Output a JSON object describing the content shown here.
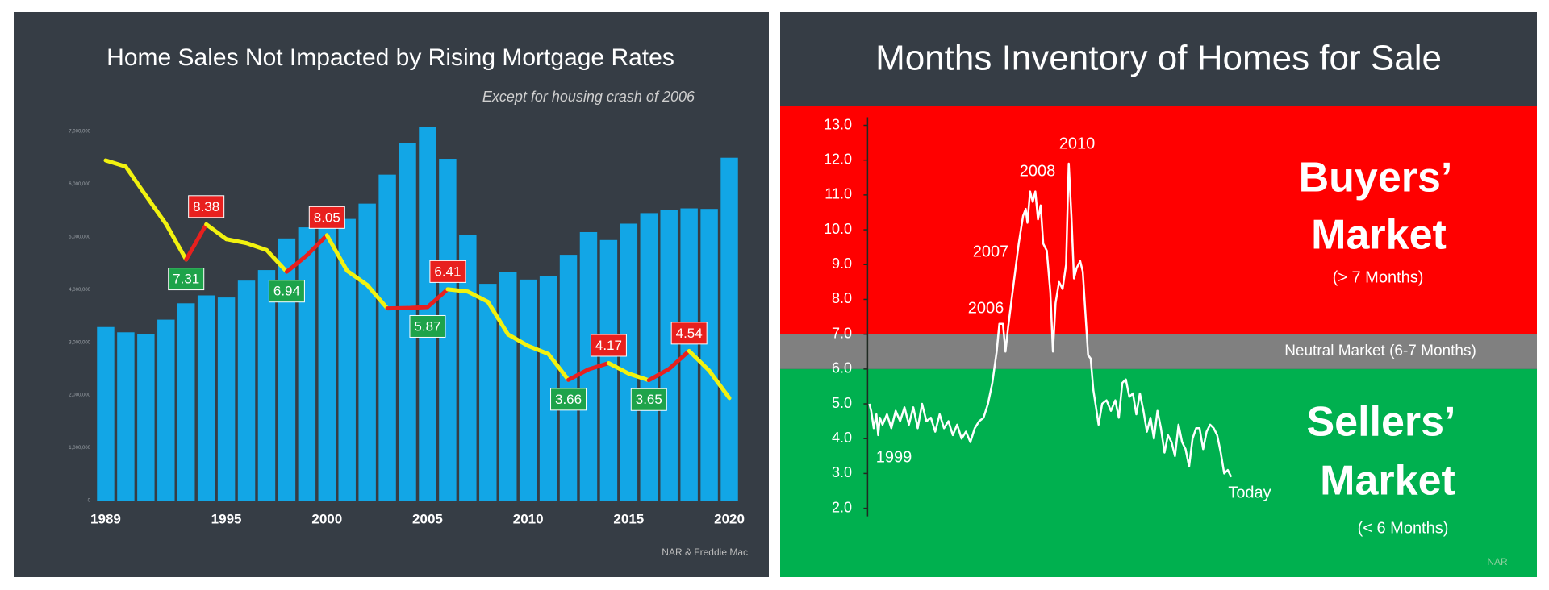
{
  "chart_data": [
    {
      "type": "combo",
      "title": "Home Sales Not Impacted by Rising Mortgage Rates",
      "subtitle": "Except for housing crash of 2006",
      "source": "NAR & Freddie Mac",
      "x": [
        1989,
        1990,
        1991,
        1992,
        1993,
        1994,
        1995,
        1996,
        1997,
        1998,
        1999,
        2000,
        2001,
        2002,
        2003,
        2004,
        2005,
        2006,
        2007,
        2008,
        2009,
        2010,
        2011,
        2012,
        2013,
        2014,
        2015,
        2016,
        2017,
        2018,
        2019,
        2020
      ],
      "xlim": [
        1988.5,
        2020.5
      ],
      "xticks": [
        1989,
        1995,
        2000,
        2005,
        2010,
        2015,
        2020
      ],
      "ylim": [
        0,
        7000000
      ],
      "yticks": [
        0,
        {
          "value": 1000000,
          "label": "1,000,000"
        },
        {
          "value": 2000000,
          "label": "2,000,000"
        },
        {
          "value": 3000000,
          "label": "3,000,000"
        },
        {
          "value": 4000000,
          "label": "4,000,000"
        },
        {
          "value": 5000000,
          "label": "5,000,000"
        },
        {
          "value": 6000000,
          "label": "6,000,000"
        },
        {
          "value": 7000000,
          "label": "7,000,000"
        }
      ],
      "y2lim": [
        0,
        11.2
      ],
      "grid": false,
      "series": [
        {
          "type": "bar",
          "color": "#12a6e6",
          "values": [
            3290000,
            3190000,
            3150000,
            3430000,
            3740000,
            3890000,
            3850000,
            4170000,
            4370000,
            4970000,
            5180000,
            5170000,
            5340000,
            5630000,
            6180000,
            6780000,
            7080000,
            6480000,
            5030000,
            4110000,
            4340000,
            4190000,
            4260000,
            4660000,
            5090000,
            4940000,
            5250000,
            5450000,
            5510000,
            5540000,
            5530000,
            6500000
          ]
        },
        {
          "type": "line",
          "axis": "y2",
          "color": "#f2f20f",
          "rise_color": "#e8201e",
          "trough_color": "#1ea34a",
          "values": [
            10.32,
            10.13,
            9.25,
            8.39,
            7.31,
            8.38,
            7.93,
            7.81,
            7.6,
            6.94,
            7.44,
            8.05,
            6.97,
            6.54,
            5.83,
            5.84,
            5.87,
            6.41,
            6.34,
            6.03,
            5.04,
            4.69,
            4.45,
            3.66,
            3.98,
            4.17,
            3.85,
            3.65,
            3.99,
            4.54,
            3.94,
            3.11
          ],
          "value_labels": [
            null,
            null,
            null,
            null,
            "7.31",
            "8.38",
            null,
            null,
            null,
            "6.94",
            null,
            "8.05",
            null,
            null,
            null,
            null,
            "5.87",
            "6.41",
            null,
            null,
            null,
            null,
            null,
            "3.66",
            null,
            "4.17",
            null,
            "3.65",
            null,
            "4.54",
            null,
            null
          ]
        }
      ]
    },
    {
      "type": "line",
      "title": "Months Inventory of Homes for Sale",
      "source": "NAR",
      "color": "#ffffff",
      "xlim": [
        1998.9,
        2037
      ],
      "ylim": [
        2,
        13
      ],
      "yticks": [
        {
          "value": 2,
          "label": "2.0"
        },
        {
          "value": 3,
          "label": "3.0"
        },
        {
          "value": 4,
          "label": "4.0"
        },
        {
          "value": 5,
          "label": "5.0"
        },
        {
          "value": 6,
          "label": "6.0"
        },
        {
          "value": 7,
          "label": "7.0"
        },
        {
          "value": 8,
          "label": "8.0"
        },
        {
          "value": 9,
          "label": "9.0"
        },
        {
          "value": 10,
          "label": "10.0"
        },
        {
          "value": 11,
          "label": "11.0"
        },
        {
          "value": 12,
          "label": "12.0"
        },
        {
          "value": 13,
          "label": "13.0"
        }
      ],
      "bands": [
        {
          "from": 7,
          "color": "#ff0000",
          "labels": [
            "Buyers’",
            "Market",
            "(> 7 Months)"
          ]
        },
        {
          "from": 6,
          "to": 7,
          "color": "#808080",
          "labels": [
            "Neutral Market (6-7 Months)"
          ]
        },
        {
          "to": 6,
          "color": "#00b04f",
          "labels": [
            "Sellers’",
            "Market",
            "(< 6 Months)"
          ]
        }
      ],
      "annotations": [
        "1999",
        "2006",
        "2007",
        "2008",
        "2010",
        "Today"
      ],
      "x": [
        1999.0,
        1999.1,
        1999.25,
        1999.4,
        1999.5,
        1999.6,
        1999.75,
        2000.0,
        2000.25,
        2000.5,
        2000.75,
        2001.0,
        2001.25,
        2001.5,
        2001.75,
        2002.0,
        2002.25,
        2002.5,
        2002.75,
        2003.0,
        2003.25,
        2003.5,
        2003.75,
        2004.0,
        2004.25,
        2004.5,
        2004.75,
        2005.0,
        2005.25,
        2005.5,
        2005.75,
        2006.0,
        2006.25,
        2006.4,
        2006.6,
        2006.75,
        2006.9,
        2007.1,
        2007.3,
        2007.5,
        2007.75,
        2007.9,
        2008.0,
        2008.15,
        2008.3,
        2008.45,
        2008.6,
        2008.75,
        2008.9,
        2009.1,
        2009.3,
        2009.45,
        2009.6,
        2009.8,
        2010.0,
        2010.2,
        2010.35,
        2010.5,
        2010.65,
        2010.8,
        2011.0,
        2011.15,
        2011.3,
        2011.45,
        2011.6,
        2011.75,
        2011.9,
        2012.05,
        2012.25,
        2012.5,
        2012.75,
        2013.0,
        2013.2,
        2013.4,
        2013.6,
        2013.8,
        2014.0,
        2014.2,
        2014.4,
        2014.6,
        2014.8,
        2015.0,
        2015.2,
        2015.4,
        2015.6,
        2015.8,
        2016.0,
        2016.2,
        2016.4,
        2016.6,
        2016.8,
        2017.0,
        2017.2,
        2017.4,
        2017.6,
        2017.8,
        2018.0,
        2018.2,
        2018.4,
        2018.6,
        2018.8,
        2019.0,
        2019.2,
        2019.4,
        2019.6
      ],
      "values": [
        5.0,
        4.8,
        4.3,
        4.7,
        4.1,
        4.6,
        4.4,
        4.7,
        4.3,
        4.8,
        4.5,
        4.9,
        4.4,
        4.9,
        4.3,
        5.0,
        4.5,
        4.6,
        4.2,
        4.7,
        4.3,
        4.5,
        4.1,
        4.4,
        4.0,
        4.2,
        3.9,
        4.3,
        4.5,
        4.6,
        5.0,
        5.6,
        6.5,
        7.3,
        7.3,
        6.5,
        7.2,
        8.0,
        8.8,
        9.6,
        10.4,
        10.6,
        10.2,
        11.1,
        10.8,
        11.1,
        10.3,
        10.7,
        9.6,
        9.4,
        8.2,
        6.5,
        7.9,
        8.5,
        8.3,
        9.0,
        11.9,
        10.4,
        8.6,
        8.9,
        9.1,
        8.8,
        7.6,
        6.4,
        6.3,
        5.4,
        4.9,
        4.4,
        5.0,
        5.1,
        4.8,
        5.1,
        4.6,
        5.6,
        5.7,
        5.2,
        5.3,
        4.7,
        5.3,
        4.8,
        4.2,
        4.6,
        4.0,
        4.8,
        4.3,
        3.6,
        4.1,
        3.9,
        3.5,
        4.4,
        3.9,
        3.7,
        3.2,
        4.0,
        4.3,
        4.3,
        3.7,
        4.2,
        4.4,
        4.3,
        4.1,
        3.6,
        3.0,
        3.1,
        2.9
      ]
    }
  ]
}
